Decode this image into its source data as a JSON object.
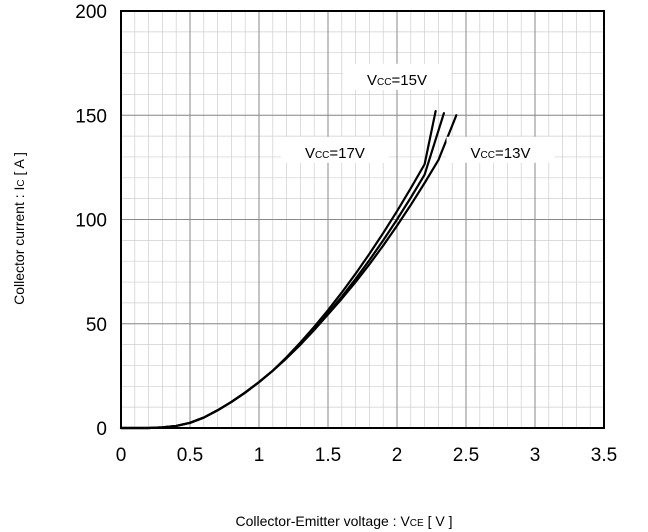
{
  "chart_data": {
    "type": "line",
    "title": "",
    "xlabel": {
      "main": "Collector-Emitter voltage  :  V",
      "sub": "CE",
      "unit": " [ V ]"
    },
    "ylabel": {
      "main": "Collector current : I",
      "sub": "C",
      "unit": " [ A ]"
    },
    "xlim": [
      0,
      3.5
    ],
    "ylim": [
      0,
      200
    ],
    "x_major_ticks": [
      0,
      0.5,
      1,
      1.5,
      2,
      2.5,
      3,
      3.5
    ],
    "x_tick_labels": [
      "0",
      "0.5",
      "1",
      "1.5",
      "2",
      "2.5",
      "3",
      "3.5"
    ],
    "y_major_ticks": [
      0,
      50,
      100,
      150,
      200
    ],
    "y_tick_labels": [
      "0",
      "50",
      "100",
      "150",
      "200"
    ],
    "x_minor_step": 0.1,
    "y_minor_step": 10,
    "grid": true,
    "series": [
      {
        "label": {
          "pre": "V",
          "sub": "CC",
          "post": "=17V"
        },
        "x": [
          0,
          0.2,
          0.3,
          0.4,
          0.5,
          0.6,
          0.7,
          0.8,
          0.9,
          1.0,
          1.1,
          1.2,
          1.3,
          1.4,
          1.5,
          1.6,
          1.7,
          1.8,
          1.9,
          2.0,
          2.1,
          2.2,
          2.28
        ],
        "y": [
          0,
          0,
          0.3,
          1,
          2.5,
          5,
          8.5,
          12.5,
          17,
          22,
          27.5,
          34,
          41,
          48.5,
          56.5,
          65,
          74,
          83.5,
          93.5,
          104,
          115,
          126.5,
          152
        ]
      },
      {
        "label": {
          "pre": "V",
          "sub": "CC",
          "post": "=15V"
        },
        "x": [
          0,
          0.2,
          0.3,
          0.4,
          0.5,
          0.6,
          0.7,
          0.8,
          0.9,
          1.0,
          1.1,
          1.2,
          1.3,
          1.4,
          1.5,
          1.6,
          1.7,
          1.8,
          1.9,
          2.0,
          2.1,
          2.2,
          2.34
        ],
        "y": [
          0,
          0,
          0.3,
          1,
          2.5,
          5,
          8.5,
          12.5,
          17,
          22,
          27.5,
          33.5,
          40,
          47.5,
          55,
          63,
          71.5,
          80.5,
          90,
          100,
          110.5,
          121.5,
          151
        ]
      },
      {
        "label": {
          "pre": "V",
          "sub": "CC",
          "post": "=13V"
        },
        "x": [
          0,
          0.2,
          0.3,
          0.4,
          0.5,
          0.6,
          0.7,
          0.8,
          0.9,
          1.0,
          1.1,
          1.2,
          1.3,
          1.4,
          1.5,
          1.6,
          1.7,
          1.8,
          1.9,
          2.0,
          2.1,
          2.2,
          2.3,
          2.43
        ],
        "y": [
          0,
          0,
          0.3,
          1,
          2.5,
          5,
          8.5,
          12.5,
          17,
          22,
          27.5,
          33.5,
          40,
          47,
          54.5,
          62,
          70,
          78.5,
          87.5,
          97,
          107,
          117.5,
          128.5,
          150
        ]
      }
    ],
    "annotations": [
      {
        "series": 0,
        "x": 1.55,
        "y": 132
      },
      {
        "series": 1,
        "x": 2.0,
        "y": 167
      },
      {
        "series": 2,
        "x": 2.75,
        "y": 132
      }
    ]
  }
}
